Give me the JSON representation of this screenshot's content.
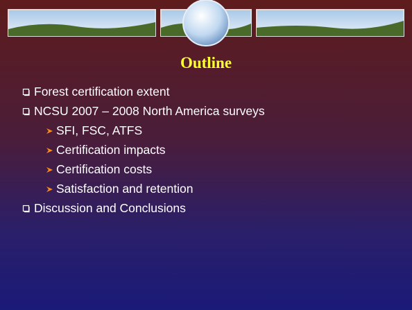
{
  "title": "Outline",
  "items": [
    {
      "text": "Forest certification extent",
      "children": []
    },
    {
      "text": "NCSU 2007 – 2008 North America surveys",
      "children": [
        {
          "text": "SFI, FSC, ATFS"
        },
        {
          "text": "Certification impacts"
        },
        {
          "text": "Certification costs"
        },
        {
          "text": "Satisfaction and retention"
        }
      ]
    },
    {
      "text": "Discussion and Conclusions",
      "children": []
    }
  ]
}
